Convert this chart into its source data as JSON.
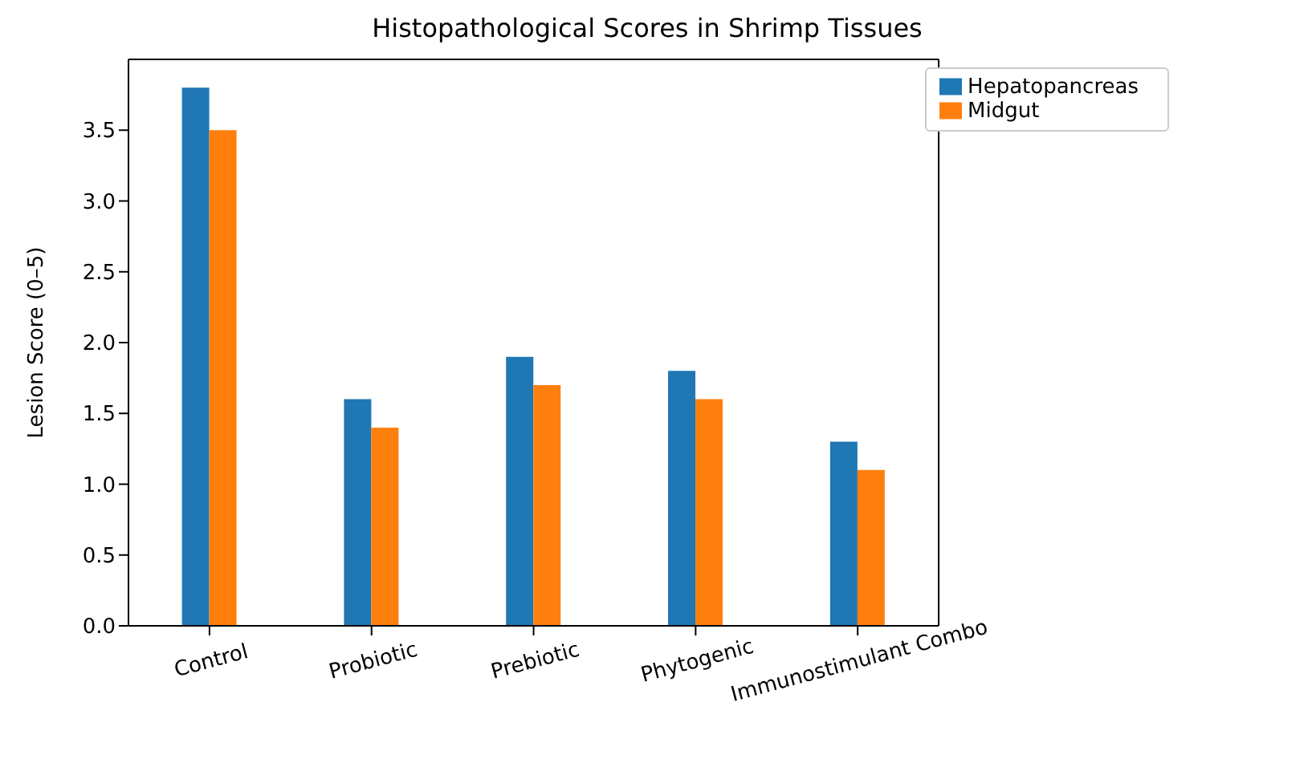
{
  "chart_data": {
    "type": "bar",
    "title": "Histopathological Scores in Shrimp Tissues",
    "ylabel": "Lesion Score (0–5)",
    "categories": [
      "Control",
      "Probiotic",
      "Prebiotic",
      "Phytogenic",
      "Immunostimulant Combo"
    ],
    "series": [
      {
        "name": "Hepatopancreas",
        "color": "#1f77b4",
        "values": [
          3.8,
          1.6,
          1.9,
          1.8,
          1.3
        ]
      },
      {
        "name": "Midgut",
        "color": "#ff7f0e",
        "values": [
          3.5,
          1.4,
          1.7,
          1.6,
          1.1
        ]
      }
    ],
    "ylim": [
      0,
      4.0
    ],
    "yticks": [
      {
        "value": 0,
        "label": "0.0"
      },
      {
        "value": 0.5,
        "label": "0.5"
      },
      {
        "value": 1,
        "label": "1.0"
      },
      {
        "value": 1.5,
        "label": "1.5"
      },
      {
        "value": 2,
        "label": "2.0"
      },
      {
        "value": 2.5,
        "label": "2.5"
      },
      {
        "value": 3,
        "label": "3.0"
      },
      {
        "value": 3.5,
        "label": "3.5"
      }
    ],
    "grid": false,
    "legend": "top right"
  }
}
